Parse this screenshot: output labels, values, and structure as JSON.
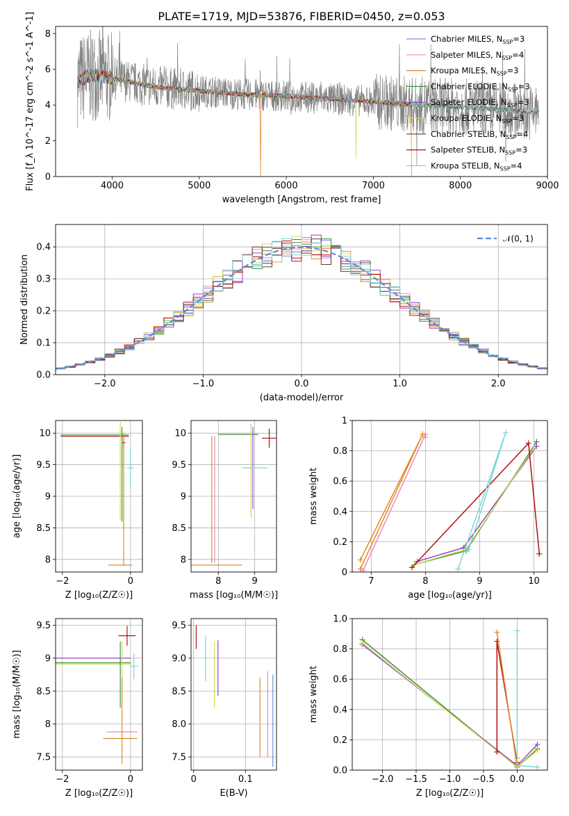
{
  "figure_title": "PLATE=1719, MJD=53876, FIBERID=0450, z=0.053",
  "colors": {
    "data": "#808080",
    "chabrier_miles": "#6b8ed6",
    "salpeter_miles": "#e88ac2",
    "kroupa_miles": "#e08a2a",
    "chabrier_elodie": "#3f8f3f",
    "salpeter_elodie": "#9b3fc8",
    "kroupa_elodie": "#c8e050",
    "chabrier_stelib": "#5a3a2a",
    "salpeter_stelib": "#b01010",
    "kroupa_stelib": "#7ed6d6",
    "gauss": "#5b8bd6",
    "grid": "#b0b0b0"
  },
  "chart_data": [
    {
      "id": "spectrum",
      "type": "line",
      "title": "PLATE=1719, MJD=53876, FIBERID=0450, z=0.053",
      "xlabel": "wavelength [Angstrom, rest frame]",
      "ylabel": "Flux [f_λ 10^-17 erg cm^-2 s^-1 A^-1]",
      "xlim": [
        3350,
        9000
      ],
      "ylim": [
        0,
        8.4
      ],
      "xticks": [
        4000,
        5000,
        6000,
        7000,
        8000,
        9000
      ],
      "yticks": [
        0,
        2,
        4,
        6,
        8
      ],
      "grid": false,
      "legend_position": "top-right",
      "legend": [
        {
          "label": "Chabrier MILES, N",
          "sub": "SSP",
          "suffix": "=3",
          "color_key": "chabrier_miles"
        },
        {
          "label": "Salpeter MILES, N",
          "sub": "SSP",
          "suffix": "=4",
          "color_key": "salpeter_miles"
        },
        {
          "label": "Kroupa MILES, N",
          "sub": "SSP",
          "suffix": "=3",
          "color_key": "kroupa_miles"
        },
        {
          "label": "Chabrier ELODIE, N",
          "sub": "SSP",
          "suffix": "=3",
          "color_key": "chabrier_elodie"
        },
        {
          "label": "Salpeter ELODIE, N",
          "sub": "SSP",
          "suffix": "=3",
          "color_key": "salpeter_elodie"
        },
        {
          "label": "Kroupa ELODIE, N",
          "sub": "SSP",
          "suffix": "=3",
          "color_key": "kroupa_elodie"
        },
        {
          "label": "Chabrier STELIB, N",
          "sub": "SSP",
          "suffix": "=4",
          "color_key": "chabrier_stelib"
        },
        {
          "label": "Salpeter STELIB, N",
          "sub": "SSP",
          "suffix": "=3",
          "color_key": "salpeter_stelib"
        },
        {
          "label": "Kroupa STELIB, N",
          "sub": "SSP",
          "suffix": "=4",
          "color_key": "kroupa_stelib"
        }
      ],
      "continuum_x": [
        3600,
        3700,
        3800,
        3900,
        4000,
        4200,
        4500,
        5000,
        5500,
        6000,
        6500,
        7000,
        7500,
        8000,
        8500,
        8900
      ],
      "continuum_y": [
        5.3,
        5.6,
        5.7,
        5.6,
        5.5,
        5.3,
        5.0,
        4.8,
        4.6,
        4.5,
        4.35,
        4.2,
        4.0,
        3.9,
        3.75,
        3.6
      ],
      "data_range": [
        3600,
        8900
      ]
    },
    {
      "id": "residuals",
      "type": "histogram",
      "xlabel": "(data-model)/error",
      "ylabel": "Normed distribution",
      "xlim": [
        -2.5,
        2.5
      ],
      "ylim": [
        0,
        0.47
      ],
      "xticks": [
        -2,
        -1,
        0,
        1,
        2
      ],
      "yticks": [
        0.0,
        0.1,
        0.2,
        0.3,
        0.4
      ],
      "grid": true,
      "legend_position": "top-right",
      "legend": [
        {
          "label": "𝒩(0, 1)",
          "color_key": "gauss"
        }
      ],
      "bin_width": 0.1,
      "curve": "normal(0,1)"
    },
    {
      "id": "age_vs_z",
      "type": "scatter",
      "xlabel": "Z [log₁₀(Z/Z☉)]",
      "ylabel": "age  [log₁₀(age/yr)]",
      "xlim": [
        -2.2,
        0.35
      ],
      "ylim": [
        7.8,
        10.2
      ],
      "xticks": [
        -2,
        0
      ],
      "yticks": [
        8.0,
        8.5,
        9.0,
        9.5,
        10.0
      ],
      "grid": true,
      "errorbars": [
        {
          "x": -1.05,
          "y": 9.97,
          "xerr": 1.0,
          "yerr": 0.0,
          "color_key": "chabrier_elodie"
        },
        {
          "x": -1.05,
          "y": 9.95,
          "xerr": 1.0,
          "yerr": 0.0,
          "color_key": "salpeter_stelib"
        },
        {
          "x": -0.3,
          "y": 9.4,
          "xerr": 0.0,
          "yerr": 0.78,
          "color_key": "kroupa_elodie"
        },
        {
          "x": -0.25,
          "y": 9.35,
          "xerr": 0.0,
          "yerr": 0.75,
          "color_key": "chabrier_elodie"
        },
        {
          "x": -0.2,
          "y": 9.85,
          "xerr": 0.05,
          "yerr": 0.1,
          "color_key": "salpeter_stelib"
        },
        {
          "x": 0.0,
          "y": 9.45,
          "xerr": 0.1,
          "yerr": 0.35,
          "color_key": "kroupa_stelib"
        },
        {
          "x": -0.3,
          "y": 7.91,
          "xerr": 0.35,
          "yerr": 0.0,
          "color_key": "kroupa_miles"
        },
        {
          "x": -0.2,
          "y": 8.95,
          "xerr": 0.0,
          "yerr": 1.05,
          "color_key": "kroupa_miles"
        }
      ]
    },
    {
      "id": "age_vs_mass",
      "type": "scatter",
      "xlabel": "mass [log₁₀(M/M☉)]",
      "ylabel": "",
      "xlim": [
        7.25,
        9.6
      ],
      "ylim": [
        7.8,
        10.2
      ],
      "xticks": [
        8,
        9
      ],
      "yticks": [
        8.0,
        8.5,
        9.0,
        9.5,
        10.0
      ],
      "grid": true,
      "errorbars": [
        {
          "x": 8.55,
          "y": 9.98,
          "xerr": 0.55,
          "yerr": 0.0,
          "color_key": "chabrier_elodie"
        },
        {
          "x": 8.9,
          "y": 9.4,
          "xerr": 0.0,
          "yerr": 0.75,
          "color_key": "kroupa_elodie"
        },
        {
          "x": 8.95,
          "y": 9.45,
          "xerr": 0.0,
          "yerr": 0.65,
          "color_key": "salpeter_elodie"
        },
        {
          "x": 9.0,
          "y": 9.45,
          "xerr": 0.35,
          "yerr": 0.0,
          "color_key": "kroupa_stelib"
        },
        {
          "x": 9.4,
          "y": 9.92,
          "xerr": 0.2,
          "yerr": 0.15,
          "color_key": "salpeter_stelib"
        },
        {
          "x": 7.82,
          "y": 8.95,
          "xerr": 0.0,
          "yerr": 1.0,
          "color_key": "kroupa_miles"
        },
        {
          "x": 7.9,
          "y": 8.95,
          "xerr": 0.0,
          "yerr": 1.0,
          "color_key": "salpeter_miles"
        },
        {
          "x": 7.95,
          "y": 7.91,
          "xerr": 0.7,
          "yerr": 0.0,
          "color_key": "kroupa_miles"
        }
      ]
    },
    {
      "id": "massweight_vs_age",
      "type": "line",
      "xlabel": "age  [log₁₀(age/yr)]",
      "ylabel": "mass weight",
      "xlim": [
        6.65,
        10.25
      ],
      "ylim": [
        0,
        1.0
      ],
      "xticks": [
        7,
        8,
        9,
        10
      ],
      "yticks": [
        0.0,
        0.2,
        0.4,
        0.6,
        0.8,
        1.0
      ],
      "grid": true,
      "series": [
        {
          "color_key": "salpeter_miles",
          "x": [
            6.85,
            8.0,
            8.0
          ],
          "y": [
            0.01,
            0.91,
            0.89
          ]
        },
        {
          "color_key": "kroupa_miles",
          "x": [
            6.8,
            7.95,
            6.8
          ],
          "y": [
            0.08,
            0.91,
            0.02
          ]
        },
        {
          "color_key": "chabrier_elodie",
          "x": [
            7.8,
            8.75,
            10.05
          ],
          "y": [
            0.05,
            0.14,
            0.86
          ]
        },
        {
          "color_key": "salpeter_elodie",
          "x": [
            7.85,
            8.7,
            10.05
          ],
          "y": [
            0.07,
            0.16,
            0.83
          ]
        },
        {
          "color_key": "kroupa_elodie",
          "x": [
            7.8,
            8.75,
            10.0
          ],
          "y": [
            0.05,
            0.15,
            0.82
          ]
        },
        {
          "color_key": "salpeter_stelib",
          "x": [
            7.75,
            9.9,
            10.1
          ],
          "y": [
            0.03,
            0.85,
            0.12
          ]
        },
        {
          "color_key": "kroupa_stelib",
          "x": [
            8.6,
            9.48,
            8.8
          ],
          "y": [
            0.02,
            0.92,
            0.15
          ]
        }
      ]
    },
    {
      "id": "mass_vs_z",
      "type": "scatter",
      "xlabel": "Z [log₁₀(Z/Z☉)]",
      "ylabel": "mass [log₁₀(M/M☉)]",
      "xlim": [
        -2.2,
        0.35
      ],
      "ylim": [
        7.3,
        9.6
      ],
      "xticks": [
        -2,
        0
      ],
      "yticks": [
        7.5,
        8.0,
        8.5,
        9.0,
        9.5
      ],
      "grid": true,
      "errorbars": [
        {
          "x": -1.1,
          "y": 9.0,
          "xerr": 1.1,
          "yerr": 0.0,
          "color_key": "salpeter_elodie"
        },
        {
          "x": -1.1,
          "y": 8.93,
          "xerr": 1.1,
          "yerr": 0.0,
          "color_key": "chabrier_elodie"
        },
        {
          "x": -1.1,
          "y": 8.91,
          "xerr": 1.1,
          "yerr": 0.0,
          "color_key": "kroupa_elodie"
        },
        {
          "x": -0.3,
          "y": 8.75,
          "xerr": 0.0,
          "yerr": 0.5,
          "color_key": "chabrier_elodie"
        },
        {
          "x": -0.25,
          "y": 8.8,
          "xerr": 0.0,
          "yerr": 0.45,
          "color_key": "kroupa_elodie"
        },
        {
          "x": -0.1,
          "y": 9.34,
          "xerr": 0.25,
          "yerr": 0.15,
          "color_key": "salpeter_stelib"
        },
        {
          "x": 0.1,
          "y": 8.88,
          "xerr": 0.12,
          "yerr": 0.2,
          "color_key": "kroupa_stelib"
        },
        {
          "x": -0.25,
          "y": 7.88,
          "xerr": 0.45,
          "yerr": 0.0,
          "color_key": "salpeter_miles"
        },
        {
          "x": -0.3,
          "y": 7.78,
          "xerr": 0.5,
          "yerr": 0.0,
          "color_key": "kroupa_miles"
        },
        {
          "x": -0.25,
          "y": 8.05,
          "xerr": 0.0,
          "yerr": 0.65,
          "color_key": "kroupa_miles"
        }
      ]
    },
    {
      "id": "mass_vs_ebv",
      "type": "scatter",
      "xlabel": "E(B-V)",
      "ylabel": "",
      "xlim": [
        -0.005,
        0.16
      ],
      "ylim": [
        7.3,
        9.6
      ],
      "xticks": [
        0.0,
        0.1
      ],
      "yticks": [
        7.5,
        8.0,
        8.5,
        9.0,
        9.5
      ],
      "grid": true,
      "errorbars": [
        {
          "x": 0.005,
          "y": 9.32,
          "xerr": 0.0,
          "yerr": 0.18,
          "color_key": "salpeter_stelib"
        },
        {
          "x": 0.023,
          "y": 9.0,
          "xerr": 0.0,
          "yerr": 0.35,
          "color_key": "kroupa_stelib"
        },
        {
          "x": 0.04,
          "y": 8.75,
          "xerr": 0.0,
          "yerr": 0.5,
          "color_key": "kroupa_elodie"
        },
        {
          "x": 0.047,
          "y": 8.85,
          "xerr": 0.0,
          "yerr": 0.42,
          "color_key": "salpeter_elodie"
        },
        {
          "x": 0.128,
          "y": 8.1,
          "xerr": 0.0,
          "yerr": 0.6,
          "color_key": "kroupa_miles"
        },
        {
          "x": 0.143,
          "y": 8.15,
          "xerr": 0.0,
          "yerr": 0.65,
          "color_key": "salpeter_miles"
        },
        {
          "x": 0.153,
          "y": 8.05,
          "xerr": 0.0,
          "yerr": 0.7,
          "color_key": "chabrier_miles"
        }
      ]
    },
    {
      "id": "massweight_vs_z",
      "type": "line",
      "xlabel": "Z [log₁₀(Z/Z☉)]",
      "ylabel": "mass weight",
      "xlim": [
        -2.45,
        0.45
      ],
      "ylim": [
        0,
        1.0
      ],
      "xticks": [
        -2.0,
        -1.5,
        -1.0,
        -0.5,
        0.0
      ],
      "yticks": [
        0.0,
        0.2,
        0.4,
        0.6,
        0.8,
        1.0
      ],
      "grid": true,
      "series": [
        {
          "color_key": "chabrier_elodie",
          "x": [
            -2.3,
            0.0,
            0.3
          ],
          "y": [
            0.86,
            0.02,
            0.14
          ]
        },
        {
          "color_key": "salpeter_elodie",
          "x": [
            -2.3,
            0.0,
            0.3
          ],
          "y": [
            0.83,
            0.03,
            0.17
          ]
        },
        {
          "color_key": "kroupa_elodie",
          "x": [
            -2.3,
            0.0,
            0.3
          ],
          "y": [
            0.84,
            0.02,
            0.13
          ]
        },
        {
          "color_key": "salpeter_stelib",
          "x": [
            -0.3,
            -0.3,
            0.0
          ],
          "y": [
            0.12,
            0.85,
            0.05
          ]
        },
        {
          "color_key": "kroupa_miles",
          "x": [
            -0.3,
            0.0,
            0.0
          ],
          "y": [
            0.91,
            0.02,
            0.08
          ]
        },
        {
          "color_key": "kroupa_stelib",
          "x": [
            0.0,
            0.0,
            0.3
          ],
          "y": [
            0.92,
            0.03,
            0.02
          ]
        }
      ]
    }
  ]
}
